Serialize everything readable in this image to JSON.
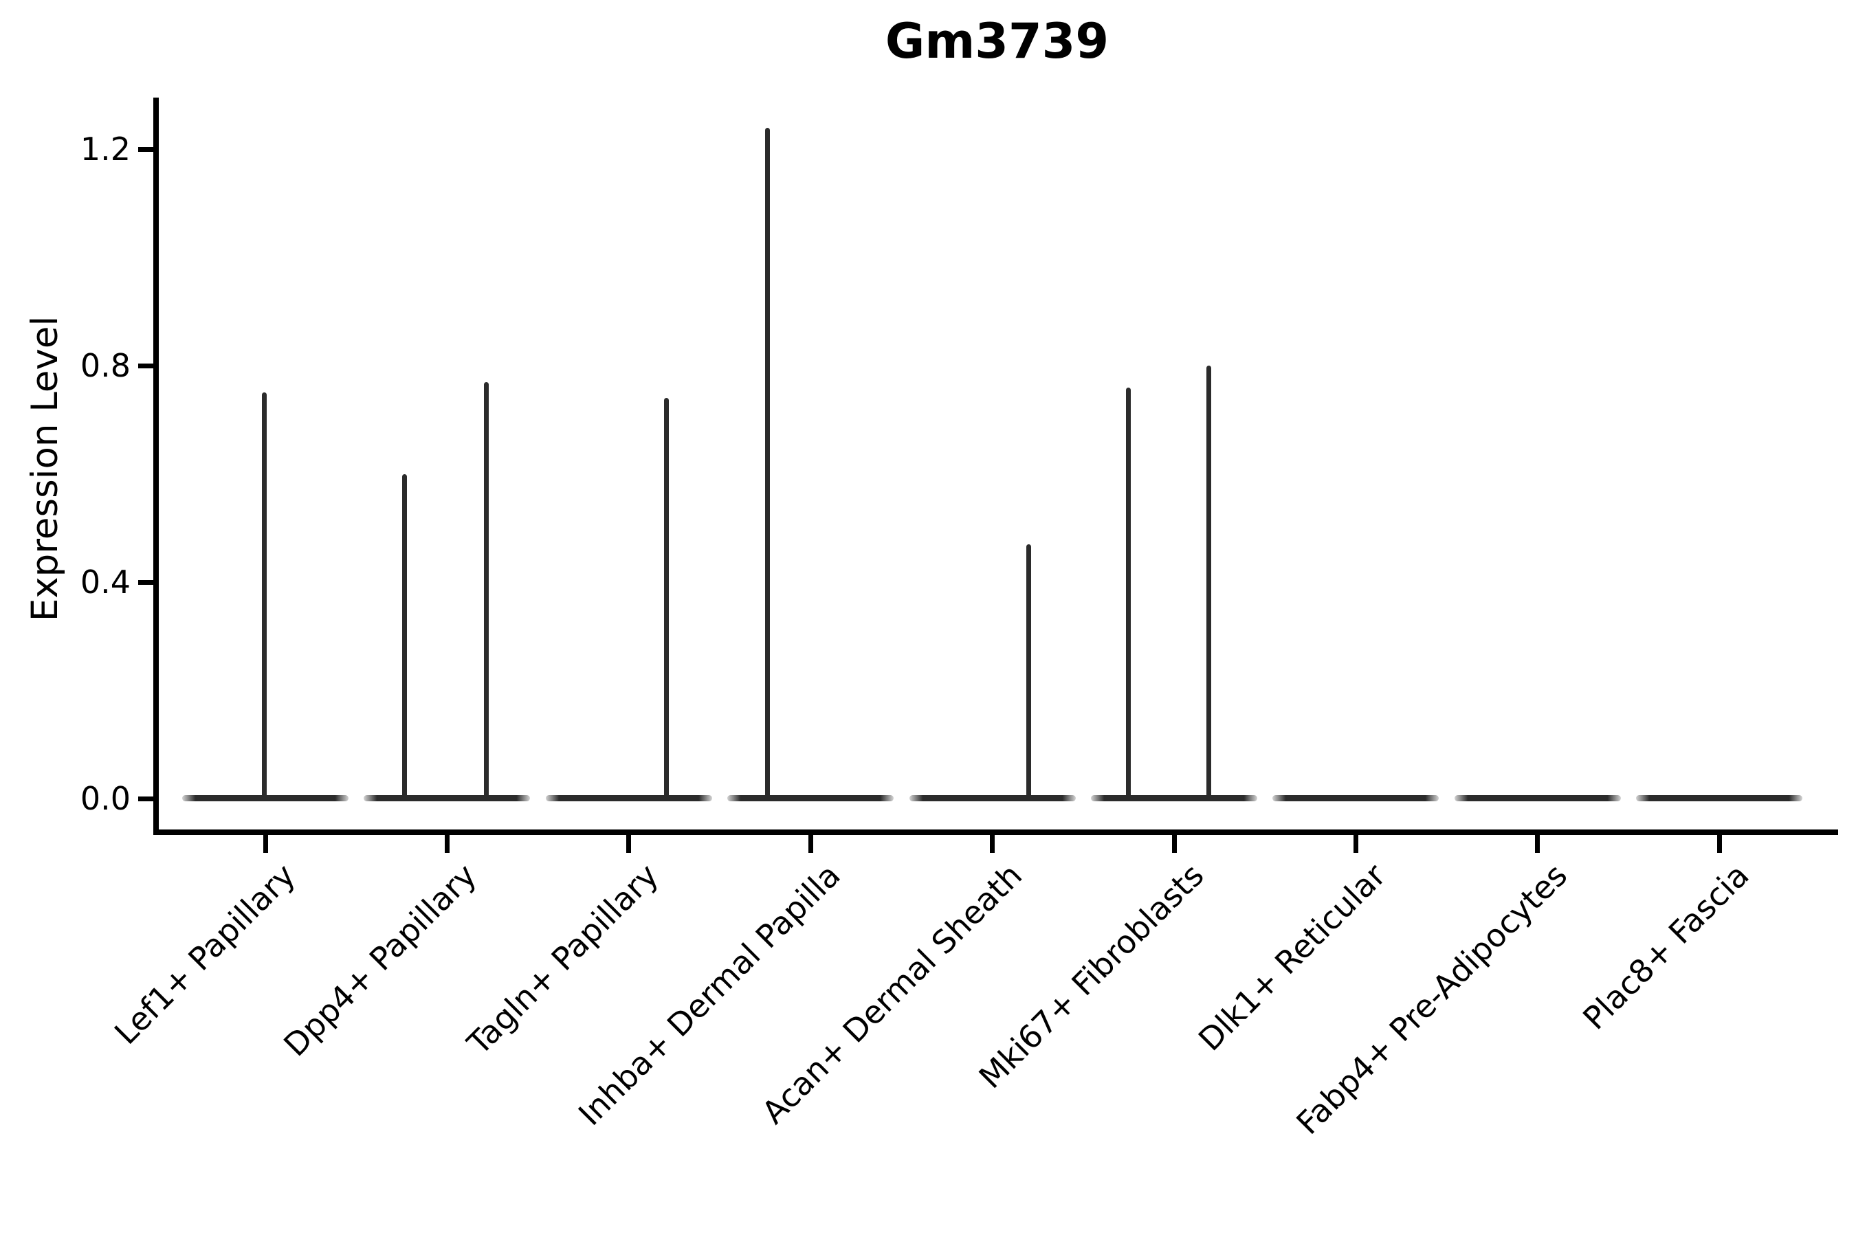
{
  "figure": {
    "background": "#ffffff"
  },
  "chart_data": {
    "type": "violin",
    "title": "Gm3739",
    "xlabel": "",
    "ylabel": "Expression Level",
    "ylim": [
      0,
      1.29
    ],
    "grid": false,
    "legend": false,
    "yticks": [
      {
        "label": "0.0",
        "value": 0.0
      },
      {
        "label": "0.4",
        "value": 0.4
      },
      {
        "label": "0.8",
        "value": 0.8
      },
      {
        "label": "1.2",
        "value": 1.2
      }
    ],
    "categories": [
      "Lef1+ Papillary",
      "Dpp4+ Papillary",
      "Tagln+ Papillary",
      "Inhba+ Dermal Papilla",
      "Acan+ Dermal Sheath",
      "Mki67+ Fibroblasts",
      "Dlk1+ Reticular",
      "Fabp4+ Pre-Adipocytes",
      "Plac8+ Fascia"
    ],
    "violins": [
      {
        "category": "Lef1+ Papillary",
        "body": "flat-at-zero",
        "spikes": [
          {
            "x_offset_frac": -0.01,
            "value": 0.75
          }
        ]
      },
      {
        "category": "Dpp4+ Papillary",
        "body": "flat-at-zero",
        "spikes": [
          {
            "x_offset_frac": -0.51,
            "value": 0.6
          },
          {
            "x_offset_frac": 0.47,
            "value": 0.77
          }
        ]
      },
      {
        "category": "Tagln+ Papillary",
        "body": "flat-at-zero",
        "spikes": [
          {
            "x_offset_frac": 0.45,
            "value": 0.74
          }
        ]
      },
      {
        "category": "Inhba+ Dermal Papilla",
        "body": "flat-at-zero",
        "spikes": [
          {
            "x_offset_frac": -0.52,
            "value": 1.24
          }
        ]
      },
      {
        "category": "Acan+ Dermal Sheath",
        "body": "flat-at-zero",
        "spikes": [
          {
            "x_offset_frac": 0.44,
            "value": 0.47
          }
        ]
      },
      {
        "category": "Mki67+ Fibroblasts",
        "body": "flat-at-zero",
        "spikes": [
          {
            "x_offset_frac": -0.55,
            "value": 0.76
          },
          {
            "x_offset_frac": 0.42,
            "value": 0.8
          }
        ]
      },
      {
        "category": "Dlk1+ Reticular",
        "body": "flat-at-zero",
        "spikes": []
      },
      {
        "category": "Fabp4+ Pre-Adipocytes",
        "body": "flat-at-zero",
        "spikes": []
      },
      {
        "category": "Plac8+ Fascia",
        "body": "flat-at-zero",
        "spikes": []
      }
    ],
    "colors": {
      "violin": "#2b2b2b",
      "axis": "#000000",
      "text": "#000000"
    }
  }
}
